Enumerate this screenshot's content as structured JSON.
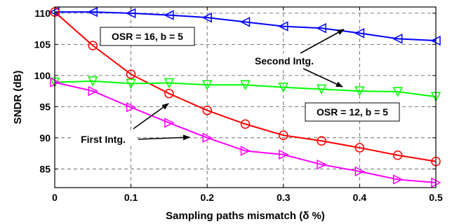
{
  "chart_data": {
    "type": "line",
    "xlabel": "Sampling paths mismatch (δ %)",
    "ylabel": "SNDR (dB)",
    "xlim": [
      0,
      0.5
    ],
    "ylim": [
      82,
      111
    ],
    "x_ticks": [
      0,
      0.1,
      0.2,
      0.3,
      0.4,
      0.5
    ],
    "x_tick_labels": [
      "0",
      "0.1",
      "0.2",
      "0.3",
      "0.4",
      "0.5"
    ],
    "y_ticks": [
      85,
      90,
      95,
      100,
      105,
      110
    ],
    "y_tick_labels": [
      "85",
      "90",
      "95",
      "100",
      "105",
      "110"
    ],
    "grid": true,
    "x": [
      0,
      0.05,
      0.1,
      0.15,
      0.2,
      0.25,
      0.3,
      0.35,
      0.4,
      0.45,
      0.5
    ],
    "series": [
      {
        "color": "#0000ff",
        "marker": "triangle-left",
        "values": [
          110.2,
          110.2,
          110.0,
          109.7,
          109.3,
          108.6,
          107.9,
          107.6,
          106.8,
          105.9,
          105.6
        ]
      },
      {
        "color": "#ff0000",
        "marker": "circle",
        "values": [
          110.2,
          104.8,
          100.2,
          97.1,
          94.4,
          92.2,
          90.4,
          89.5,
          88.4,
          87.2,
          86.2
        ]
      },
      {
        "color": "#00ff00",
        "marker": "triangle-down",
        "values": [
          98.9,
          99.1,
          98.7,
          98.8,
          98.5,
          98.5,
          98.1,
          97.8,
          97.5,
          97.4,
          96.6
        ]
      },
      {
        "color": "#ff00ff",
        "marker": "triangle-right",
        "values": [
          98.9,
          97.5,
          94.9,
          92.4,
          90.0,
          87.9,
          87.3,
          85.7,
          84.6,
          83.3,
          82.8
        ]
      }
    ],
    "annotations": [
      {
        "text": "OSR = 16, b = 5",
        "boxed": true
      },
      {
        "text": "OSR = 12, b = 5",
        "boxed": true
      },
      {
        "text": "Second Intg.",
        "boxed": false
      },
      {
        "text": "First Intg.",
        "boxed": false
      }
    ]
  }
}
